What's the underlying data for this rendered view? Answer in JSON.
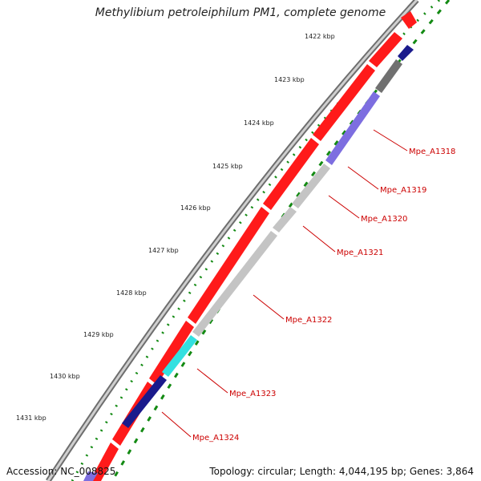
{
  "title": "Methylibium petroleiphilum PM1, complete genome",
  "footer": {
    "accession": "Accession: NC_008825",
    "summary": "Topology: circular; Length: 4,044,195 bp; Genes: 3,864"
  },
  "colors": {
    "backbone": "#9a9a9a",
    "forward_gene": "#ff1a1a",
    "reverse_gene_grey": "#c4c4c4",
    "reverse_gene_purple": "#7d6ee0",
    "reverse_gene_navy": "#1a1a8c",
    "reverse_gene_teal": "#33e0e0",
    "reverse_gene_dark": "#707070",
    "tick_dots": "#138a13",
    "gene_label": "#cc0000"
  },
  "ticks": [
    {
      "label": "1422 kbp",
      "value": 1422
    },
    {
      "label": "1423 kbp",
      "value": 1423
    },
    {
      "label": "1424 kbp",
      "value": 1424
    },
    {
      "label": "1425 kbp",
      "value": 1425
    },
    {
      "label": "1426 kbp",
      "value": 1426
    },
    {
      "label": "1427 kbp",
      "value": 1427
    },
    {
      "label": "1428 kbp",
      "value": 1428
    },
    {
      "label": "1429 kbp",
      "value": 1429
    },
    {
      "label": "1430 kbp",
      "value": 1430
    },
    {
      "label": "1431 kbp",
      "value": 1431
    }
  ],
  "genes_labeled": [
    {
      "name": "Mpe_A1318",
      "color": "#7d6ee0"
    },
    {
      "name": "Mpe_A1319",
      "color": "#c4c4c4"
    },
    {
      "name": "Mpe_A1320",
      "color": "#c4c4c4"
    },
    {
      "name": "Mpe_A1321",
      "color": "#c4c4c4"
    },
    {
      "name": "Mpe_A1322",
      "color": "#c4c4c4"
    },
    {
      "name": "Mpe_A1323",
      "color": "#33e0e0"
    },
    {
      "name": "Mpe_A1324",
      "color": "#1a1a8c"
    }
  ]
}
